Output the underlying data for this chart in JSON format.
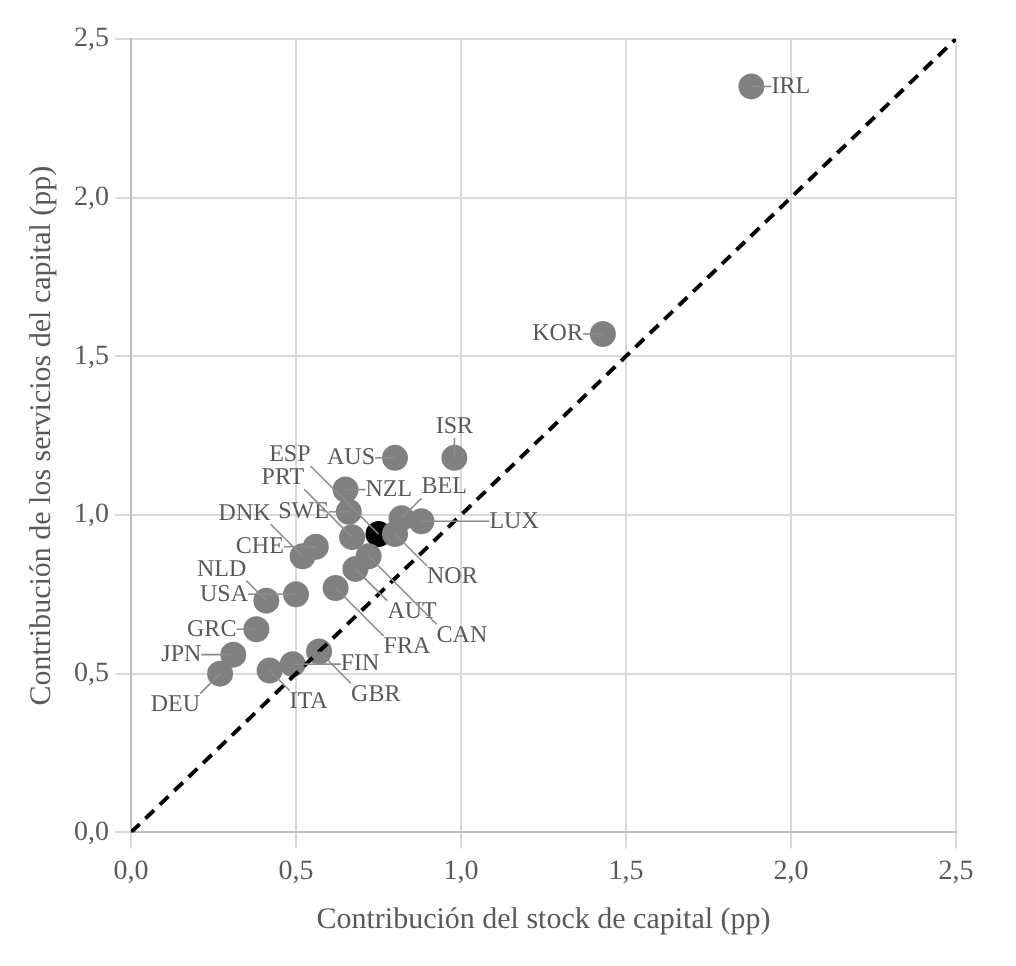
{
  "chart_data": {
    "type": "scatter",
    "xlabel": "Contribución del stock de capital (pp)",
    "ylabel": "Contribución de los servicios del capital (pp)",
    "xlim": [
      0,
      2.5
    ],
    "ylim": [
      0,
      2.5
    ],
    "xticks": [
      {
        "value": 0,
        "label": "0,0"
      },
      {
        "value": 0.5,
        "label": "0,5"
      },
      {
        "value": 1,
        "label": "1,0"
      },
      {
        "value": 1.5,
        "label": "1,5"
      },
      {
        "value": 2,
        "label": "2,0"
      },
      {
        "value": 2.5,
        "label": "2,5"
      }
    ],
    "yticks": [
      {
        "value": 0,
        "label": "0,0"
      },
      {
        "value": 0.5,
        "label": "0,5"
      },
      {
        "value": 1,
        "label": "1,0"
      },
      {
        "value": 1.5,
        "label": "1,5"
      },
      {
        "value": 2,
        "label": "2,0"
      },
      {
        "value": 2.5,
        "label": "2,5"
      }
    ],
    "grid": true,
    "marker": "circle",
    "series": [
      {
        "type": "line",
        "color": "#000000",
        "line_style": "dashed",
        "marker": "none",
        "x": [
          0,
          2.5
        ],
        "values": [
          0,
          2.5
        ]
      },
      {
        "type": "scatter",
        "color": "#808080",
        "x": [
          1.88,
          1.43,
          0.8,
          0.98,
          0.65,
          0.66,
          0.56,
          0.67,
          0.82,
          0.8,
          0.88,
          0.68,
          0.72,
          0.62,
          0.5,
          0.52,
          0.41,
          0.38,
          0.31,
          0.27,
          0.42,
          0.49,
          0.57
        ],
        "values": [
          2.35,
          1.57,
          1.18,
          1.18,
          1.08,
          1.01,
          0.9,
          0.93,
          0.99,
          0.94,
          0.98,
          0.83,
          0.87,
          0.77,
          0.75,
          0.87,
          0.73,
          0.64,
          0.56,
          0.5,
          0.51,
          0.53,
          0.57
        ]
      },
      {
        "type": "scatter",
        "color": "#000000",
        "x": [
          0.75
        ],
        "values": [
          0.94
        ]
      }
    ],
    "annotations": [
      {
        "text": "IRL",
        "x": 1.88,
        "y": 2.35
      },
      {
        "text": "KOR",
        "x": 1.43,
        "y": 1.57
      },
      {
        "text": "AUS",
        "x": 0.8,
        "y": 1.18
      },
      {
        "text": "ISR",
        "x": 0.98,
        "y": 1.18
      },
      {
        "text": "NZL",
        "x": 0.65,
        "y": 1.08
      },
      {
        "text": "SWE",
        "x": 0.66,
        "y": 1.01
      },
      {
        "text": "CHE",
        "x": 0.56,
        "y": 0.9
      },
      {
        "text": "PRT",
        "x": 0.67,
        "y": 0.93
      },
      {
        "text": "BEL",
        "x": 0.82,
        "y": 0.99
      },
      {
        "text": "NOR",
        "x": 0.8,
        "y": 0.94
      },
      {
        "text": "LUX",
        "x": 0.88,
        "y": 0.98
      },
      {
        "text": "AUT",
        "x": 0.68,
        "y": 0.83
      },
      {
        "text": "CAN",
        "x": 0.72,
        "y": 0.87
      },
      {
        "text": "FRA",
        "x": 0.62,
        "y": 0.77
      },
      {
        "text": "USA",
        "x": 0.5,
        "y": 0.75
      },
      {
        "text": "DNK",
        "x": 0.52,
        "y": 0.87
      },
      {
        "text": "NLD",
        "x": 0.41,
        "y": 0.73
      },
      {
        "text": "GRC",
        "x": 0.38,
        "y": 0.64
      },
      {
        "text": "JPN",
        "x": 0.31,
        "y": 0.56
      },
      {
        "text": "DEU",
        "x": 0.27,
        "y": 0.5
      },
      {
        "text": "ITA",
        "x": 0.42,
        "y": 0.51
      },
      {
        "text": "FIN",
        "x": 0.49,
        "y": 0.53
      },
      {
        "text": "GBR",
        "x": 0.57,
        "y": 0.57
      },
      {
        "text": "ESP",
        "x": 0.75,
        "y": 0.94
      }
    ]
  }
}
